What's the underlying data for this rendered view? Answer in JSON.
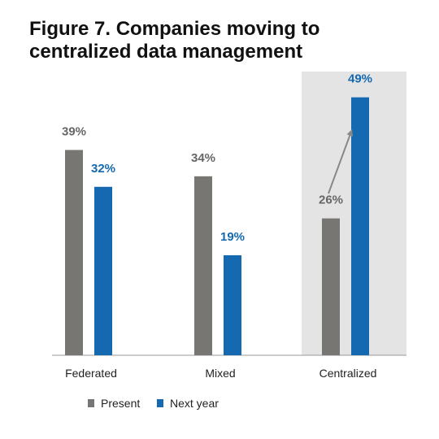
{
  "chart_data": {
    "type": "bar",
    "title": "Figure 7. Companies moving to centralized data management",
    "categories": [
      "Federated",
      "Mixed",
      "Centralized"
    ],
    "series": [
      {
        "name": "Present",
        "values": [
          39,
          34,
          26
        ],
        "labels": [
          "39%",
          "34%",
          "26%"
        ],
        "color": "#777672"
      },
      {
        "name": "Next year",
        "values": [
          32,
          19,
          49
        ],
        "labels": [
          "32%",
          "19%",
          "49%"
        ],
        "color": "#1469b0"
      }
    ],
    "ylim": [
      0,
      55
    ],
    "highlight_category": "Centralized",
    "highlight_color": "#e4e4e4",
    "label_colors": {
      "Present": "#666666",
      "Next year": "#1469b0"
    },
    "annotation": "arrow from Present to Next year on Centralized",
    "grid": false,
    "legend_position": "bottom-center"
  }
}
